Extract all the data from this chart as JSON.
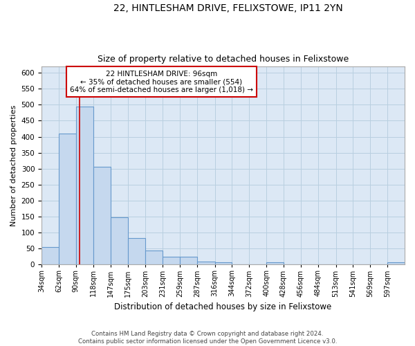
{
  "title": "22, HINTLESHAM DRIVE, FELIXSTOWE, IP11 2YN",
  "subtitle": "Size of property relative to detached houses in Felixstowe",
  "xlabel": "Distribution of detached houses by size in Felixstowe",
  "ylabel": "Number of detached properties",
  "bar_color": "#c5d8ee",
  "bar_edge_color": "#6699cc",
  "annotation_box_color": "#cc0000",
  "property_line_color": "#cc0000",
  "property_size": 96,
  "annotation_text": "22 HINTLESHAM DRIVE: 96sqm\n← 35% of detached houses are smaller (554)\n64% of semi-detached houses are larger (1,018) →",
  "categories": [
    "34sqm",
    "62sqm",
    "90sqm",
    "118sqm",
    "147sqm",
    "175sqm",
    "203sqm",
    "231sqm",
    "259sqm",
    "287sqm",
    "316sqm",
    "344sqm",
    "372sqm",
    "400sqm",
    "428sqm",
    "456sqm",
    "484sqm",
    "513sqm",
    "541sqm",
    "569sqm",
    "597sqm"
  ],
  "bin_edges": [
    34,
    62,
    90,
    118,
    147,
    175,
    203,
    231,
    259,
    287,
    316,
    344,
    372,
    400,
    428,
    456,
    484,
    513,
    541,
    569,
    597,
    625
  ],
  "values": [
    55,
    410,
    495,
    305,
    148,
    82,
    43,
    25,
    25,
    10,
    8,
    0,
    0,
    8,
    0,
    0,
    0,
    0,
    0,
    0,
    8
  ],
  "ylim": [
    0,
    620
  ],
  "yticks": [
    0,
    50,
    100,
    150,
    200,
    250,
    300,
    350,
    400,
    450,
    500,
    550,
    600
  ],
  "plot_bgcolor": "#dce8f5",
  "background_color": "#ffffff",
  "grid_color": "#b8cfe0",
  "footer_text": "Contains HM Land Registry data © Crown copyright and database right 2024.\nContains public sector information licensed under the Open Government Licence v3.0."
}
